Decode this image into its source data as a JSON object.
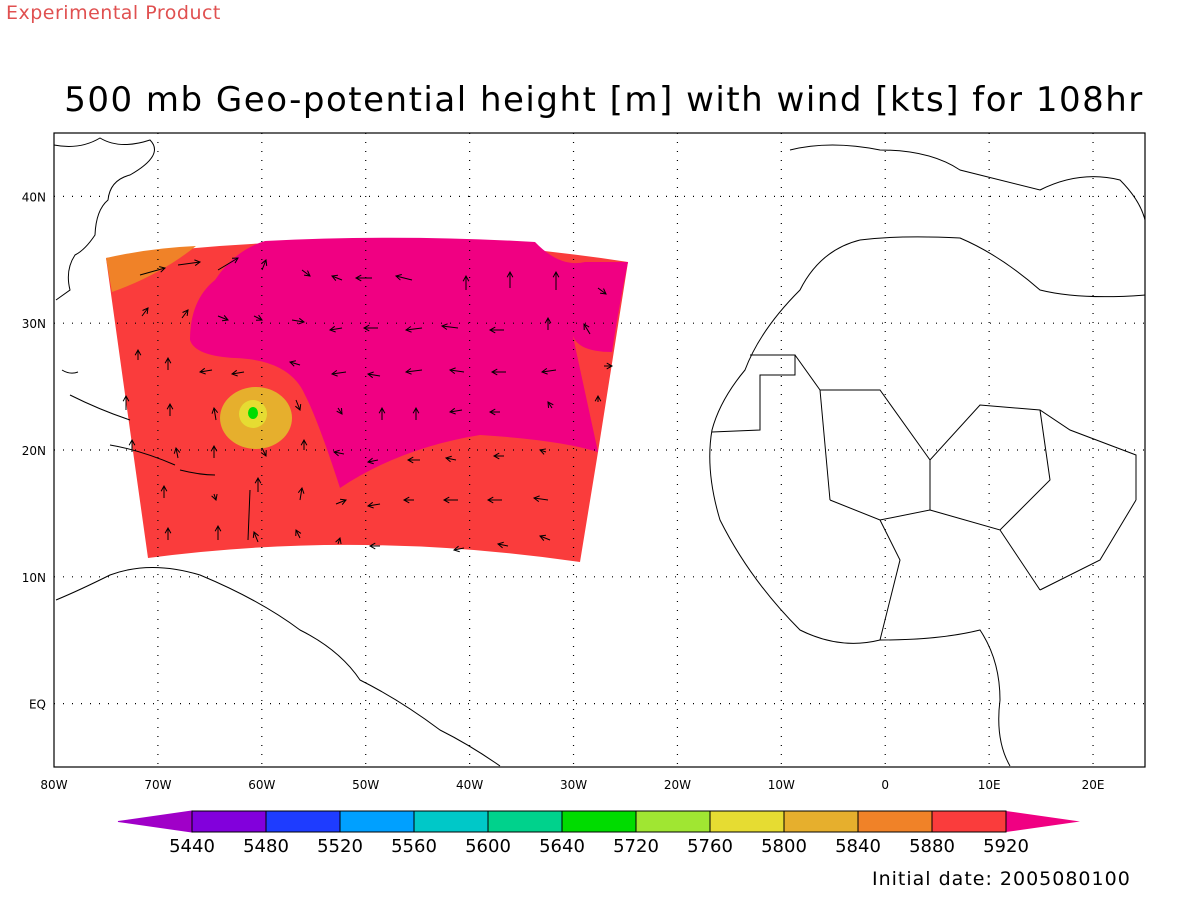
{
  "header": {
    "product_label": "Experimental Product",
    "title": "500 mb Geo-potential height [m] with wind [kts] for 108hr"
  },
  "footer": {
    "initial_date": "Initial date: 2005080100"
  },
  "map": {
    "lon_range": [
      -80,
      25
    ],
    "lat_range": [
      -5,
      45
    ],
    "lon_ticks": [
      {
        "value": -80,
        "label": "80W"
      },
      {
        "value": -70,
        "label": "70W"
      },
      {
        "value": -60,
        "label": "60W"
      },
      {
        "value": -50,
        "label": "50W"
      },
      {
        "value": -40,
        "label": "40W"
      },
      {
        "value": -30,
        "label": "30W"
      },
      {
        "value": -20,
        "label": "20W"
      },
      {
        "value": -10,
        "label": "10W"
      },
      {
        "value": 0,
        "label": "0"
      },
      {
        "value": 10,
        "label": "10E"
      },
      {
        "value": 20,
        "label": "20E"
      }
    ],
    "lat_ticks": [
      {
        "value": 0,
        "label": "EQ"
      },
      {
        "value": 10,
        "label": "10N"
      },
      {
        "value": 20,
        "label": "20N"
      },
      {
        "value": 30,
        "label": "30N"
      },
      {
        "value": 40,
        "label": "40N"
      }
    ],
    "grid": "dotted"
  },
  "colorbar": {
    "levels": [
      "5440",
      "5480",
      "5520",
      "5560",
      "5600",
      "5640",
      "5720",
      "5760",
      "5800",
      "5840",
      "5880",
      "5920"
    ],
    "colors": [
      "#a000c8",
      "#8200dc",
      "#1e3cff",
      "#00a0ff",
      "#00c8c8",
      "#00d28c",
      "#00dc00",
      "#a0e632",
      "#e6dc32",
      "#e6af2d",
      "#f08228",
      "#fa3c3c",
      "#f00082"
    ]
  },
  "colors": {
    "field_low": "#fa3c3c",
    "field_high": "#f00082",
    "field_edge": "#f08228",
    "vortex_outer": "#e6af2d",
    "vortex_mid": "#e6dc32",
    "vortex_core": "#00dc00"
  }
}
